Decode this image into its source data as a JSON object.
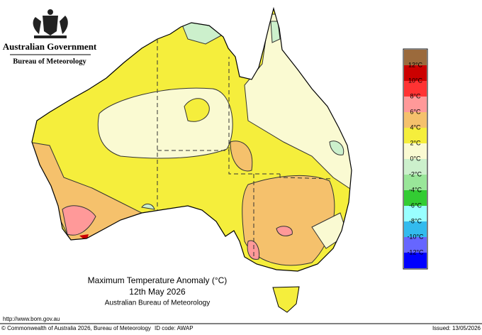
{
  "header": {
    "government": "Australian Government",
    "agency": "Bureau of Meteorology"
  },
  "legend": {
    "labels": [
      "12°C",
      "10°C",
      "8°C",
      "6°C",
      "4°C",
      "2°C",
      "0°C",
      "-2°C",
      "-4°C",
      "-6°C",
      "-8°C",
      "-10°C",
      "-12°C"
    ],
    "colors": [
      "#9b6a3c",
      "#cc0000",
      "#ff3333",
      "#ff9999",
      "#f5c16c",
      "#f5ee3c",
      "#fafad2",
      "#ccf0cc",
      "#99e699",
      "#33cc33",
      "#99ffff",
      "#33bbee",
      "#6666ff",
      "#0000ff"
    ]
  },
  "map": {
    "title": "Maximum Temperature Anomaly (°C)",
    "date": "12th May 2026",
    "source": "Australian Bureau of Meteorology"
  },
  "footer": {
    "url": "http://www.bom.gov.au",
    "copyright": "© Commonwealth of Australia 2026, Bureau of Meteorology",
    "id_code": "ID code: AWAP",
    "issued": "Issued: 13/05/2026"
  }
}
